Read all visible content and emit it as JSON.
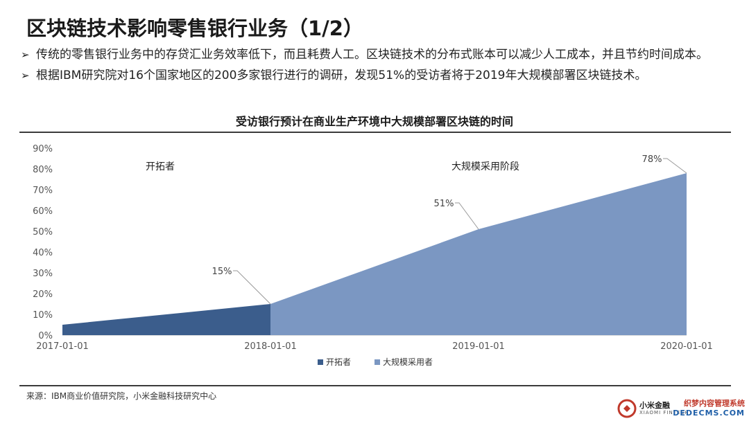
{
  "page": {
    "title": "区块链技术影响零售银行业务（1/2）",
    "bullets": [
      "传统的零售银行业务中的存贷汇业务效率低下，而且耗费人工。区块链技术的分布式账本可以减少人工成本，并且节约时间成本。",
      "根据IBM研究院对16个国家地区的200多家银行进行的调研，发现51%的受访者将于2019年大规模部署区块链技术。"
    ],
    "bullet_marker": "➢",
    "source": "来源：IBM商业价值研究院，小米金融科技研究中心",
    "logo_text": "小米金融",
    "logo_sub": "XIAOMI FINTECH",
    "watermark_line1": "织梦内容管理系统",
    "watermark_line2": "DEDECMS.COM"
  },
  "chart_data": {
    "type": "area",
    "title": "受访银行预计在商业生产环境中大规模部署区块链的时间",
    "x_ticks": [
      "2017-01-01",
      "2018-01-01",
      "2019-01-01",
      "2020-01-01"
    ],
    "y_ticks": [
      "0%",
      "10%",
      "20%",
      "30%",
      "40%",
      "50%",
      "60%",
      "70%",
      "80%",
      "90%"
    ],
    "ylim": [
      0,
      90
    ],
    "xlim": [
      "2017-01-01",
      "2020-01-01"
    ],
    "series": [
      {
        "name": "开拓者",
        "color": "#3b5d8c",
        "points": [
          {
            "x": "2017-01-01",
            "y": 5
          },
          {
            "x": "2018-01-01",
            "y": 15
          }
        ]
      },
      {
        "name": "大规模采用者",
        "color": "#7b97c2",
        "points": [
          {
            "x": "2018-01-01",
            "y": 15
          },
          {
            "x": "2019-01-01",
            "y": 51
          },
          {
            "x": "2020-01-01",
            "y": 78
          }
        ]
      }
    ],
    "annotations": [
      {
        "label": "15%",
        "x": "2018-01-01",
        "y": 15
      },
      {
        "label": "51%",
        "x": "2019-01-01",
        "y": 51
      },
      {
        "label": "78%",
        "x": "2020-01-01",
        "y": 78
      }
    ],
    "region_labels": [
      "开拓者",
      "大规模采用阶段"
    ],
    "legend_position": "bottom",
    "grid": false
  }
}
